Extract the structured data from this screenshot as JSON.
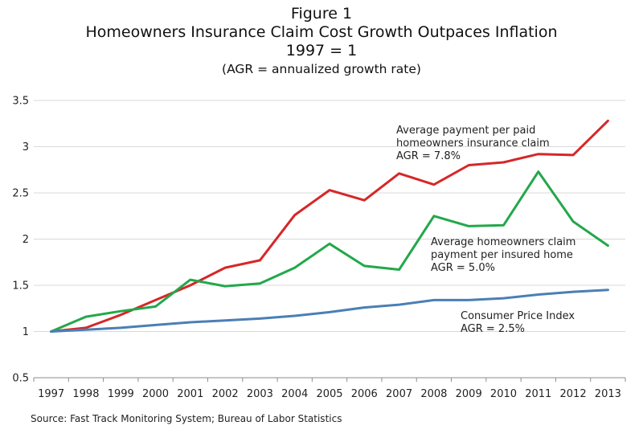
{
  "chart_data": {
    "type": "line",
    "title": "Figure 1",
    "subtitle_lines": [
      "Homeowners Insurance Claim Cost Growth Outpaces Inflation",
      "1997 = 1",
      "(AGR = annualized growth rate)"
    ],
    "xlabel": "",
    "ylabel": "",
    "x": [
      "1997",
      "1998",
      "1999",
      "2000",
      "2001",
      "2002",
      "2003",
      "2004",
      "2005",
      "2006",
      "2007",
      "2008",
      "2009",
      "2010",
      "2011",
      "2012",
      "2013"
    ],
    "ylim": [
      0.5,
      3.5
    ],
    "yticks": [
      "0.5",
      "1",
      "1.5",
      "2",
      "2.5",
      "3",
      "3.5"
    ],
    "grid": true,
    "legend": "none",
    "series": [
      {
        "color": "#d62728",
        "values": [
          1.0,
          1.04,
          1.18,
          1.34,
          1.5,
          1.69,
          1.77,
          2.26,
          2.53,
          2.42,
          2.71,
          2.59,
          2.8,
          2.83,
          2.92,
          2.91,
          3.28
        ],
        "annotation": [
          "Average payment per paid",
          "homeowners insurance claim",
          "AGR = 7.8%"
        ]
      },
      {
        "color": "#22a84a",
        "values": [
          1.0,
          1.16,
          1.22,
          1.27,
          1.56,
          1.49,
          1.52,
          1.69,
          1.95,
          1.71,
          1.67,
          2.25,
          2.14,
          2.15,
          2.73,
          2.19,
          1.93
        ],
        "annotation": [
          "Average homeowners claim",
          "payment per insured home",
          "AGR = 5.0%"
        ]
      },
      {
        "color": "#4a7fb5",
        "values": [
          1.0,
          1.02,
          1.04,
          1.07,
          1.1,
          1.12,
          1.14,
          1.17,
          1.21,
          1.26,
          1.29,
          1.34,
          1.34,
          1.36,
          1.4,
          1.43,
          1.45
        ],
        "annotation": [
          "Consumer Price Index",
          "AGR = 2.5%"
        ]
      }
    ],
    "source": "Source: Fast Track Monitoring System;  Bureau of Labor Statistics"
  }
}
